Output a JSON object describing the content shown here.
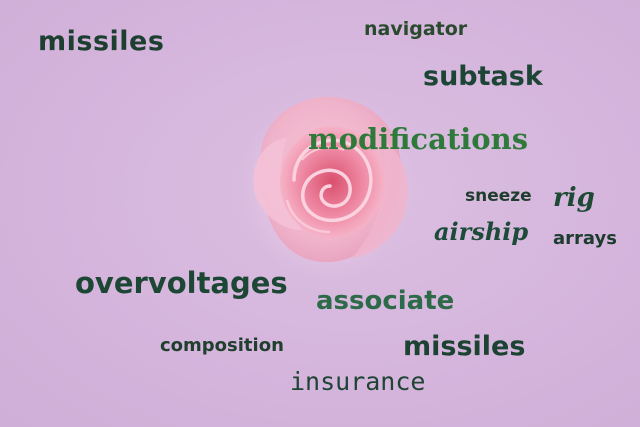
{
  "background_color": "#d6b6dd",
  "image_subject": "rose-icon",
  "words": {
    "missiles_top": "missiles",
    "navigator": "navigator",
    "subtask": "subtask",
    "modifications": "modifications",
    "sneeze": "sneeze",
    "rig": "rig",
    "airship": "airship",
    "arrays": "arrays",
    "overvoltages": "overvoltages",
    "associate": "associate",
    "composition": "composition",
    "missiles_bottom": "missiles",
    "insurance": "insurance"
  },
  "colors": {
    "text_dark_green": "#1d4735",
    "text_accent_green": "#2f7a3a",
    "rose_pink": "#f2a8c6",
    "rose_deep": "#e0647f"
  }
}
